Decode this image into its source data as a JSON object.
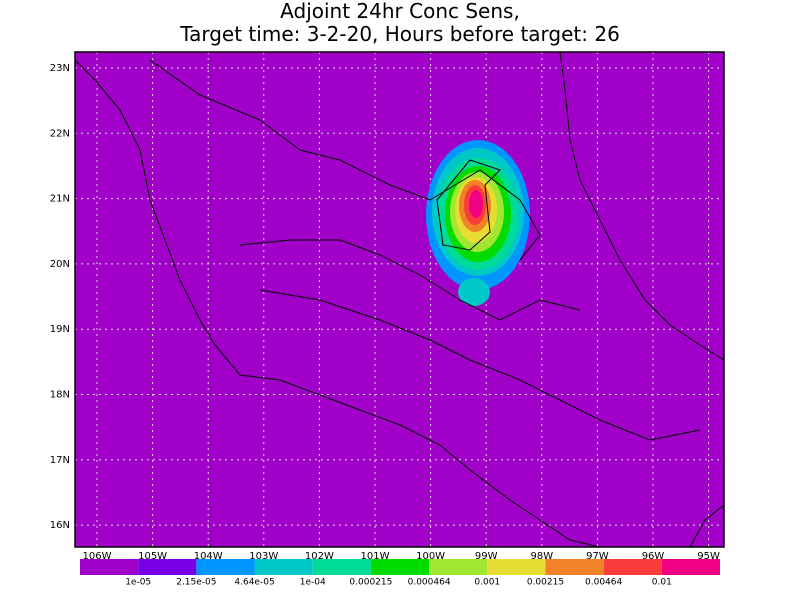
{
  "title": [
    "Adjoint 24hr Conc Sens,",
    "Target time: 3-2-20, Hours before target: 26"
  ],
  "map": {
    "lat_labels": [
      "23N",
      "22N",
      "21N",
      "20N",
      "19N",
      "18N",
      "17N",
      "16N"
    ],
    "lon_labels": [
      "106W",
      "105W",
      "104W",
      "103W",
      "102W",
      "101W",
      "100W",
      "99W",
      "98W",
      "97W",
      "96W",
      "95W"
    ]
  },
  "colorbar": {
    "colors": [
      "#a000c8",
      "#7800e6",
      "#0096ff",
      "#00c8c8",
      "#00dc96",
      "#00dc00",
      "#a0e632",
      "#e6dc32",
      "#f08228",
      "#fa3c3c",
      "#f00082"
    ],
    "levels": [
      {
        "value": 1e-05,
        "label": "1e-05"
      },
      {
        "value": 2.15e-05,
        "label": "2.15e-05"
      },
      {
        "value": 4.64e-05,
        "label": "4.64e-05"
      },
      {
        "value": 0.0001,
        "label": "1e-04"
      },
      0.000215,
      0.000464,
      0.001,
      0.00215,
      0.00464,
      0.01
    ]
  }
}
